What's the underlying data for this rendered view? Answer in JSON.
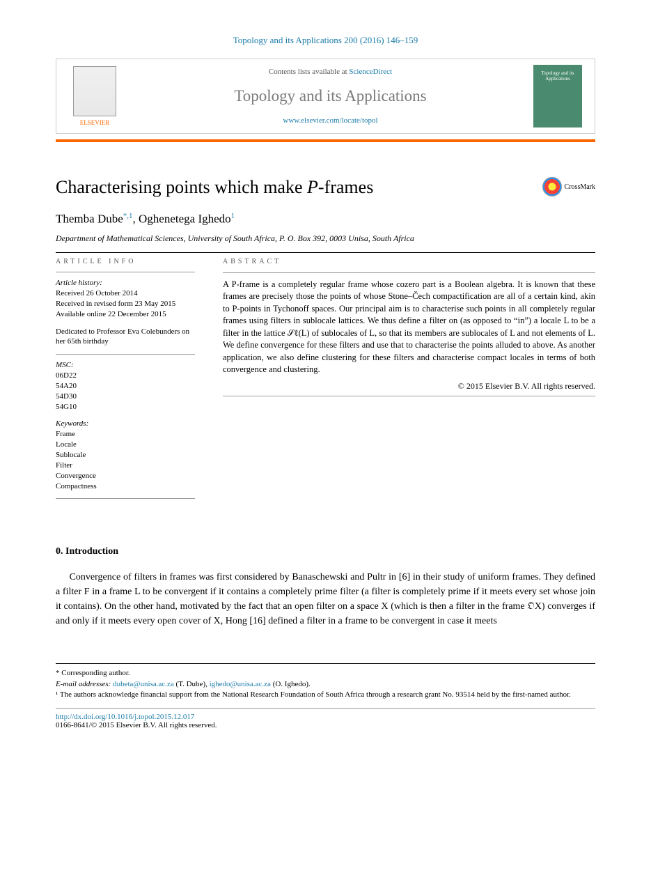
{
  "header": {
    "citation": "Topology and its Applications 200 (2016) 146–159",
    "contents_prefix": "Contents lists available at ",
    "contents_link": "ScienceDirect",
    "journal_title": "Topology and its Applications",
    "journal_url": "www.elsevier.com/locate/topol",
    "publisher": "ELSEVIER",
    "cover_text": "Topology and its Applications"
  },
  "colors": {
    "accent_orange": "#ff6600",
    "link_blue": "#1a7ba8",
    "cover_bg": "#4a8b6f"
  },
  "title": {
    "before_ital": "Characterising points which make ",
    "ital": "P",
    "after_ital": "-frames"
  },
  "crossmark_label": "CrossMark",
  "authors": {
    "a1_name": "Themba Dube",
    "a1_marks": "*,1",
    "sep": ", ",
    "a2_name": "Oghenetega Ighedo",
    "a2_marks": "1"
  },
  "affiliation": "Department of Mathematical Sciences, University of South Africa, P. O. Box 392, 0003 Unisa, South Africa",
  "labels": {
    "article_info": "ARTICLE INFO",
    "abstract": "ABSTRACT"
  },
  "article_info": {
    "history_head": "Article history:",
    "received": "Received 26 October 2014",
    "revised": "Received in revised form 23 May 2015",
    "online": "Available online 22 December 2015",
    "dedication": "Dedicated to Professor Eva Colebunders on her 65th birthday",
    "msc_head": "MSC:",
    "msc": [
      "06D22",
      "54A20",
      "54D30",
      "54G10"
    ],
    "keywords_head": "Keywords:",
    "keywords": [
      "Frame",
      "Locale",
      "Sublocale",
      "Filter",
      "Convergence",
      "Compactness"
    ]
  },
  "abstract": {
    "text": "A P-frame is a completely regular frame whose cozero part is a Boolean algebra. It is known that these frames are precisely those the points of whose Stone–Čech compactification are all of a certain kind, akin to P-points in Tychonoff spaces. Our principal aim is to characterise such points in all completely regular frames using filters in sublocale lattices. We thus define a filter on (as opposed to “in”) a locale L to be a filter in the lattice 𝒮ℓ(L) of sublocales of L, so that its members are sublocales of L and not elements of L. We define convergence for these filters and use that to characterise the points alluded to above. As another application, we also define clustering for these filters and characterise compact locales in terms of both convergence and clustering.",
    "copyright": "© 2015 Elsevier B.V. All rights reserved."
  },
  "intro": {
    "heading": "0. Introduction",
    "paragraph": "Convergence of filters in frames was first considered by Banaschewski and Pultr in [6] in their study of uniform frames. They defined a filter F in a frame L to be convergent if it contains a completely prime filter (a filter is completely prime if it meets every set whose join it contains). On the other hand, motivated by the fact that an open filter on a space X (which is then a filter in the frame 𝔒X) converges if and only if it meets every open cover of X, Hong [16] defined a filter in a frame to be convergent in case it meets"
  },
  "footnotes": {
    "corresponding": "* Corresponding author.",
    "email_label": "E-mail addresses: ",
    "email1": "dubeta@unisa.ac.za",
    "email1_who": " (T. Dube), ",
    "email2": "ighedo@unisa.ac.za",
    "email2_who": " (O. Ighedo).",
    "funding": "¹ The authors acknowledge financial support from the National Research Foundation of South Africa through a research grant No. 93514 held by the first-named author."
  },
  "bottom": {
    "doi": "http://dx.doi.org/10.1016/j.topol.2015.12.017",
    "issn_line": "0166-8641/© 2015 Elsevier B.V. All rights reserved."
  }
}
